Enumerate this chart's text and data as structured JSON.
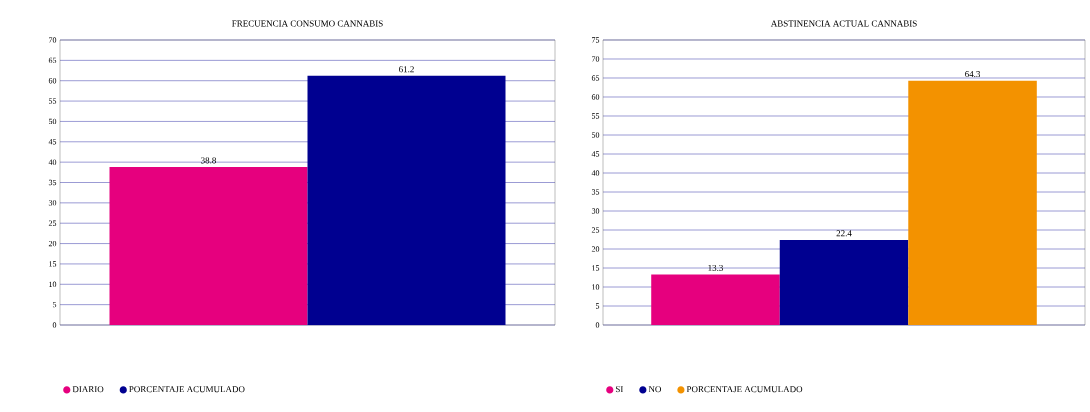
{
  "chart_data": [
    {
      "type": "bar",
      "title": "FRECUENCIA CONSUMO CANNABIS",
      "categories": [
        null
      ],
      "series": [
        {
          "name": "DIARIO",
          "color": "#e6007e",
          "values": [
            38.8
          ]
        },
        {
          "name": "PORCENTAJE ACUMULADO",
          "color": "#000090",
          "values": [
            61.2
          ]
        }
      ],
      "ylim": [
        0,
        70
      ],
      "yticks": [
        0,
        5,
        10,
        15,
        20,
        25,
        30,
        35,
        40,
        45,
        50,
        55,
        60,
        65,
        70
      ],
      "grid": "y",
      "legend": "bottom left",
      "data_labels": true
    },
    {
      "type": "bar",
      "title": "ABSTINENCIA ACTUAL CANNABIS",
      "categories": [
        null
      ],
      "series": [
        {
          "name": "SI",
          "color": "#e6007e",
          "values": [
            13.3
          ]
        },
        {
          "name": "NO",
          "color": "#000090",
          "values": [
            22.4
          ]
        },
        {
          "name": "PORCENTAJE ACUMULADO",
          "color": "#f39200",
          "values": [
            64.3
          ]
        }
      ],
      "ylim": [
        0,
        75
      ],
      "yticks": [
        0,
        5,
        10,
        15,
        20,
        25,
        30,
        35,
        40,
        45,
        50,
        55,
        60,
        65,
        70,
        75
      ],
      "grid": "y",
      "legend": "bottom left",
      "data_labels": true
    }
  ]
}
